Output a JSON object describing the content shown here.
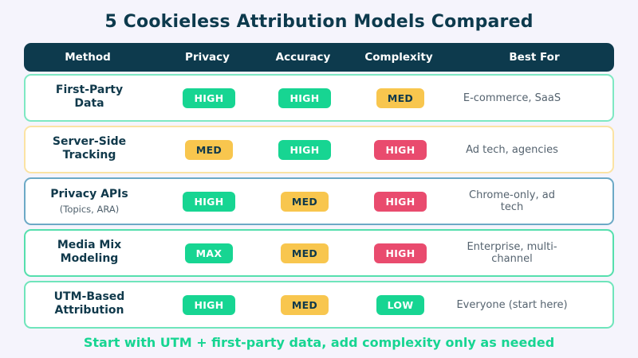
{
  "page": {
    "title": "5 Cookieless Attribution Models Compared",
    "footer": "Start with UTM + first-party data, add complexity only as needed"
  },
  "colors": {
    "background": "#f5f4fc",
    "header_bg": "#0d3a4d",
    "title_text": "#0d3a4d",
    "badge_green": "#17d592",
    "badge_yellow": "#f8c64e",
    "badge_red": "#e94b6e",
    "footer_text": "#17d592"
  },
  "table": {
    "headers": {
      "method": "Method",
      "privacy": "Privacy",
      "accuracy": "Accuracy",
      "complexity": "Complexity",
      "best_for": "Best For"
    },
    "rows": [
      {
        "method": "First-Party Data",
        "method_sub": "",
        "border_color": "#7ee8c3",
        "privacy": {
          "label": "HIGH",
          "level": "green"
        },
        "accuracy": {
          "label": "HIGH",
          "level": "green"
        },
        "complexity": {
          "label": "MED",
          "level": "yellow"
        },
        "best_for": "E-commerce, SaaS"
      },
      {
        "method": "Server-Side Tracking",
        "method_sub": "",
        "border_color": "#fbe3a4",
        "privacy": {
          "label": "MED",
          "level": "yellow"
        },
        "accuracy": {
          "label": "HIGH",
          "level": "green"
        },
        "complexity": {
          "label": "HIGH",
          "level": "red"
        },
        "best_for": "Ad tech, agencies"
      },
      {
        "method": "Privacy APIs",
        "method_sub": "(Topics, ARA)",
        "border_color": "#6ca9c6",
        "privacy": {
          "label": "HIGH",
          "level": "green"
        },
        "accuracy": {
          "label": "MED",
          "level": "yellow"
        },
        "complexity": {
          "label": "HIGH",
          "level": "red"
        },
        "best_for": "Chrome-only, ad tech"
      },
      {
        "method": "Media Mix Modeling",
        "method_sub": "",
        "border_color": "#55dfad",
        "privacy": {
          "label": "MAX",
          "level": "green"
        },
        "accuracy": {
          "label": "MED",
          "level": "yellow"
        },
        "complexity": {
          "label": "HIGH",
          "level": "red"
        },
        "best_for": "Enterprise, multi-channel"
      },
      {
        "method": "UTM-Based Attribution",
        "method_sub": "",
        "border_color": "#6fe5bb",
        "privacy": {
          "label": "HIGH",
          "level": "green"
        },
        "accuracy": {
          "label": "MED",
          "level": "yellow"
        },
        "complexity": {
          "label": "LOW",
          "level": "green"
        },
        "best_for": "Everyone (start here)"
      }
    ]
  }
}
